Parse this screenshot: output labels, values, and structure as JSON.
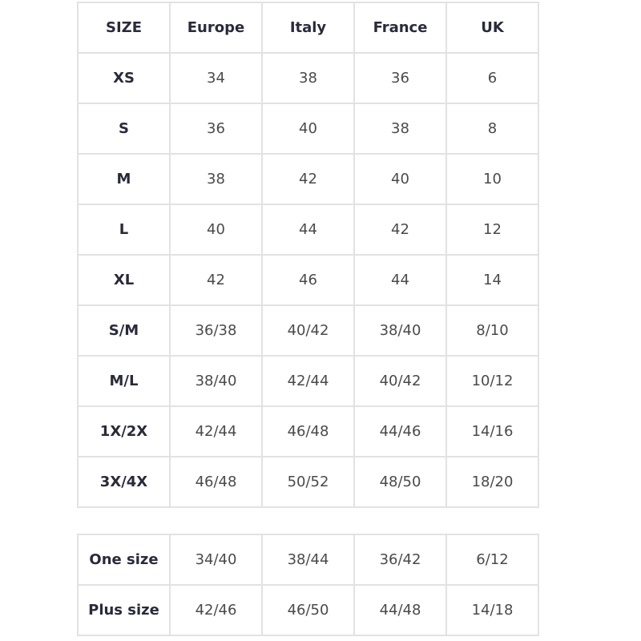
{
  "headers": [
    "SIZE",
    "Europe",
    "Italy",
    "France",
    "UK"
  ],
  "main_rows": [
    [
      "XS",
      "34",
      "38",
      "36",
      "6"
    ],
    [
      "S",
      "36",
      "40",
      "38",
      "8"
    ],
    [
      "M",
      "38",
      "42",
      "40",
      "10"
    ],
    [
      "L",
      "40",
      "44",
      "42",
      "12"
    ],
    [
      "XL",
      "42",
      "46",
      "44",
      "14"
    ],
    [
      "S/M",
      "36/38",
      "40/42",
      "38/40",
      "8/10"
    ],
    [
      "M/L",
      "38/40",
      "42/44",
      "40/42",
      "10/12"
    ],
    [
      "1X/2X",
      "42/44",
      "46/48",
      "44/46",
      "14/16"
    ],
    [
      "3X/4X",
      "46/48",
      "50/52",
      "48/50",
      "18/20"
    ]
  ],
  "extra_rows": [
    [
      "One size",
      "34/40",
      "38/44",
      "36/42",
      "6/12"
    ],
    [
      "Plus size",
      "42/46",
      "46/50",
      "44/48",
      "14/18"
    ]
  ]
}
